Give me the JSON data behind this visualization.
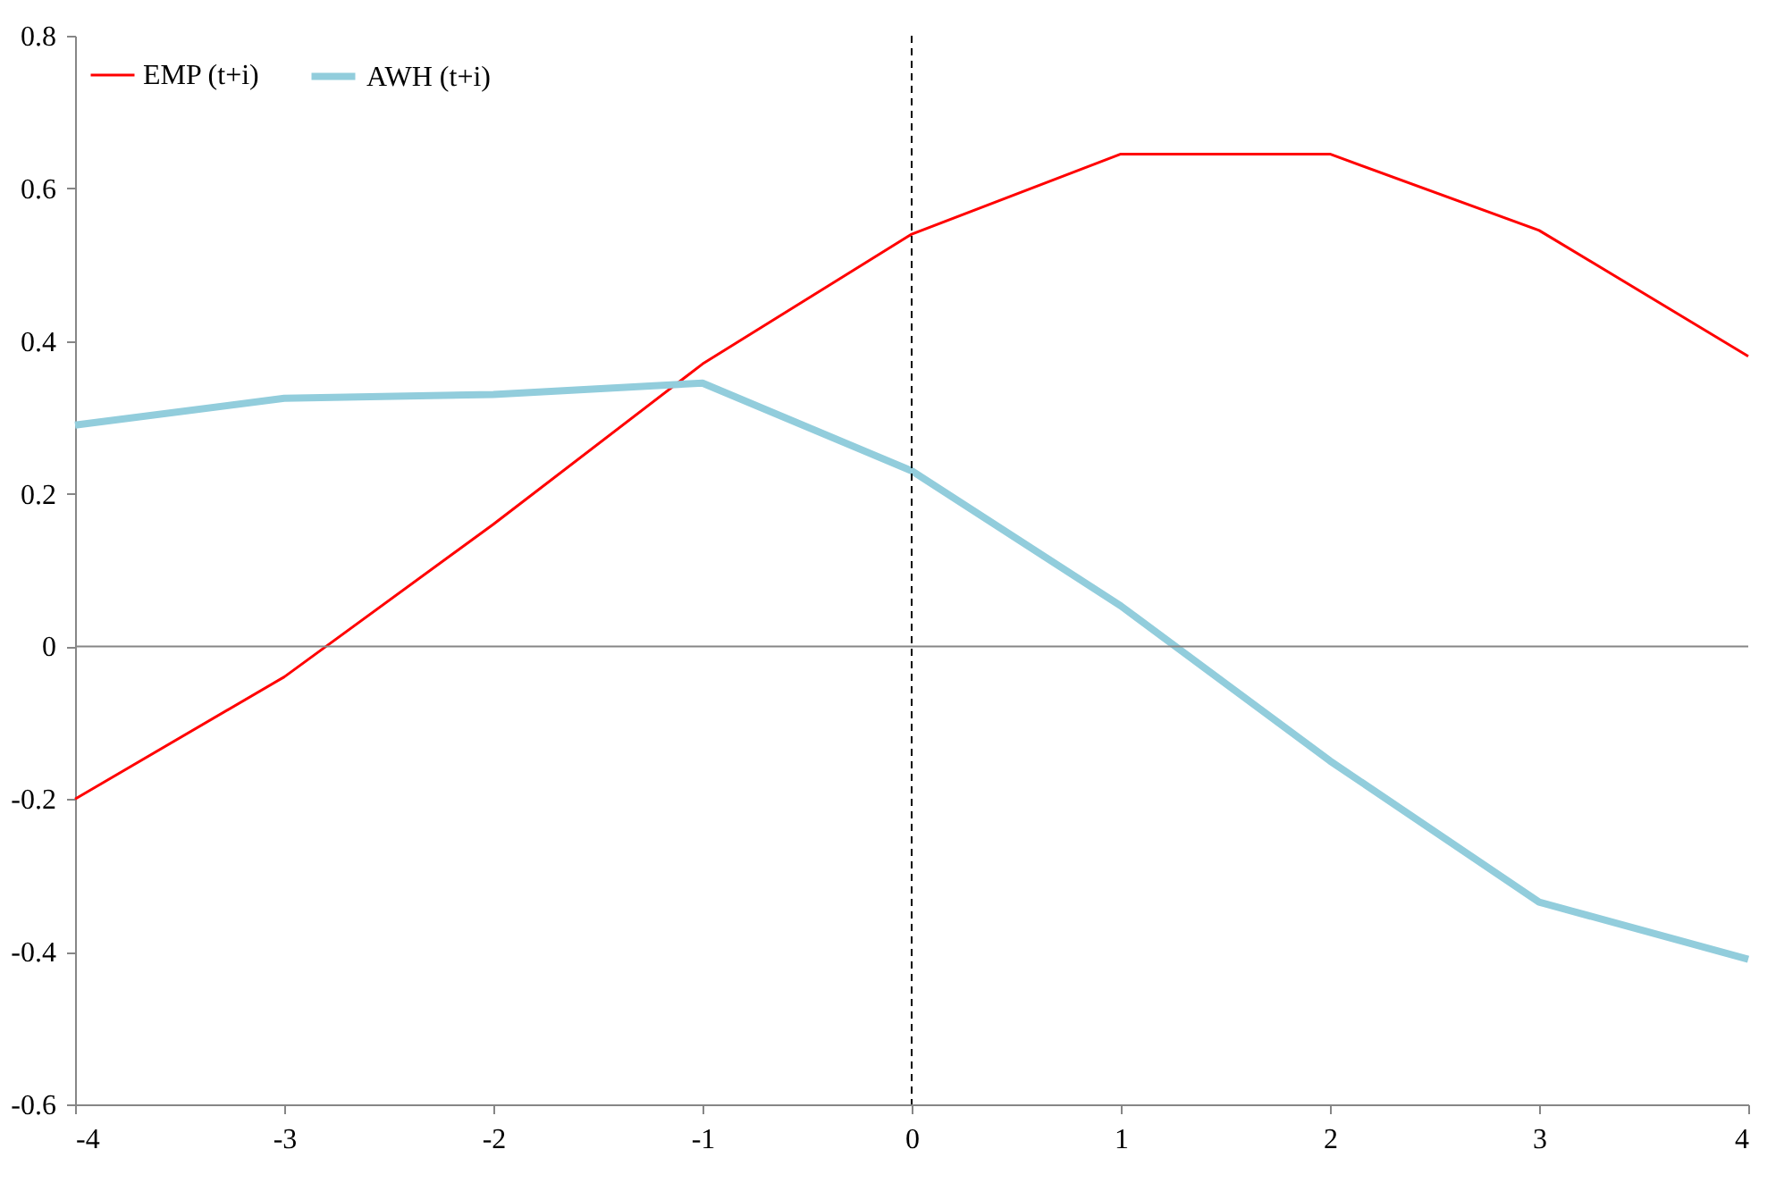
{
  "chart_data": {
    "type": "line",
    "x": [
      -4,
      -3,
      -2,
      -1,
      0,
      1,
      2,
      3,
      4
    ],
    "series": [
      {
        "name": "EMP (t+i)",
        "color": "#ff0000",
        "values": [
          -0.2,
          -0.04,
          0.16,
          0.37,
          0.54,
          0.645,
          0.645,
          0.545,
          0.38
        ]
      },
      {
        "name": "AWH (t+i)",
        "color": "#92cddc",
        "values": [
          0.29,
          0.325,
          0.33,
          0.345,
          0.23,
          0.053,
          -0.15,
          -0.335,
          -0.41
        ]
      }
    ],
    "xlim": [
      -4,
      4
    ],
    "xticks": [
      -4,
      -3,
      -2,
      -1,
      0,
      1,
      2,
      3,
      4
    ],
    "ylim": [
      -0.6,
      0.8
    ],
    "yticks": [
      -0.6,
      -0.4,
      -0.2,
      0,
      0.2,
      0.4,
      0.6,
      0.8
    ],
    "ref_lines": [
      {
        "axis": "x",
        "value": 0,
        "color": "#000000",
        "line_style": "dashed"
      },
      {
        "axis": "y",
        "value": 0,
        "color": "#868686",
        "line_style": "solid"
      }
    ],
    "grid": false,
    "legend": "top left",
    "marker": "none",
    "line_style": "solid"
  }
}
